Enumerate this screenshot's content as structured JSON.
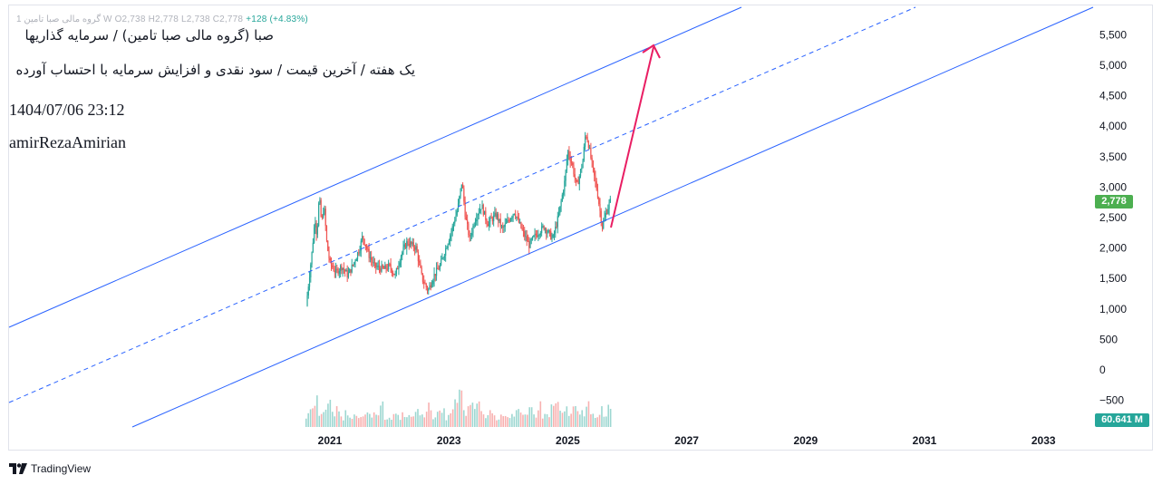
{
  "header": {
    "ohlc_prefix": "1  گروه مالی صبا تامین W  O2,738  H2,778  L2,738  C2,778",
    "change": "+128 (+4.83%)"
  },
  "notes": {
    "title": "صبا (گروه مالی صبا تامین) / سرمایه گذاریها",
    "subtitle": "یک هفته / آخرین قیمت / سود نقدی و افزایش سرمایه با احتساب آورده",
    "datetime": "1404/07/06 23:12",
    "author": "amirRezaAmirian"
  },
  "badges": {
    "last_price": "2,778",
    "volume": "60.641 M"
  },
  "brand": {
    "name": "TradingView"
  },
  "colors": {
    "up": "#26a69a",
    "down": "#ef5350",
    "channel": "#2962ff",
    "arrow": "#e91e63",
    "price_badge": "#4caf50",
    "volume_badge": "#26a69a"
  },
  "chart_data": {
    "type": "candlestick",
    "interval": "weekly",
    "y_tick_labels": [
      "5,500",
      "5,000",
      "4,500",
      "4,000",
      "3,500",
      "3,000",
      "2,500",
      "2,000",
      "1,500",
      "1,000",
      "500",
      "0",
      "−500"
    ],
    "y_ticks": [
      5500,
      5000,
      4500,
      4000,
      3500,
      3000,
      2500,
      2000,
      1500,
      1000,
      500,
      0,
      -500
    ],
    "x_tick_labels": [
      "2021",
      "2023",
      "2025",
      "2027",
      "2029",
      "2031",
      "2033"
    ],
    "x_ticks": [
      2021,
      2023,
      2025,
      2027,
      2029,
      2031,
      2033
    ],
    "last_bar": {
      "open": 2738,
      "high": 2778,
      "low": 2738,
      "close": 2778,
      "change": 128,
      "change_pct": 4.83
    },
    "price_path": [
      [
        2020.6,
        1050
      ],
      [
        2020.65,
        1500
      ],
      [
        2020.7,
        1950
      ],
      [
        2020.75,
        2500
      ],
      [
        2020.78,
        2200
      ],
      [
        2020.82,
        2850
      ],
      [
        2020.86,
        2400
      ],
      [
        2020.9,
        2700
      ],
      [
        2020.95,
        2050
      ],
      [
        2021.0,
        1750
      ],
      [
        2021.1,
        1600
      ],
      [
        2021.2,
        1700
      ],
      [
        2021.3,
        1550
      ],
      [
        2021.4,
        1750
      ],
      [
        2021.5,
        2000
      ],
      [
        2021.55,
        2200
      ],
      [
        2021.65,
        1900
      ],
      [
        2021.75,
        1700
      ],
      [
        2021.9,
        1650
      ],
      [
        2022.0,
        1700
      ],
      [
        2022.1,
        1550
      ],
      [
        2022.2,
        1900
      ],
      [
        2022.3,
        2100
      ],
      [
        2022.45,
        2000
      ],
      [
        2022.55,
        1500
      ],
      [
        2022.65,
        1300
      ],
      [
        2022.75,
        1550
      ],
      [
        2022.85,
        1700
      ],
      [
        2022.95,
        2000
      ],
      [
        2023.05,
        2300
      ],
      [
        2023.15,
        2650
      ],
      [
        2023.22,
        3100
      ],
      [
        2023.28,
        2500
      ],
      [
        2023.35,
        2150
      ],
      [
        2023.45,
        2500
      ],
      [
        2023.55,
        2700
      ],
      [
        2023.65,
        2400
      ],
      [
        2023.8,
        2550
      ],
      [
        2023.9,
        2300
      ],
      [
        2024.0,
        2450
      ],
      [
        2024.1,
        2600
      ],
      [
        2024.25,
        2250
      ],
      [
        2024.35,
        2050
      ],
      [
        2024.45,
        2200
      ],
      [
        2024.6,
        2350
      ],
      [
        2024.75,
        2150
      ],
      [
        2024.85,
        2550
      ],
      [
        2024.95,
        3100
      ],
      [
        2025.0,
        3600
      ],
      [
        2025.08,
        3350
      ],
      [
        2025.15,
        3000
      ],
      [
        2025.25,
        3400
      ],
      [
        2025.3,
        3900
      ],
      [
        2025.35,
        3700
      ],
      [
        2025.42,
        3300
      ],
      [
        2025.5,
        2900
      ],
      [
        2025.58,
        2350
      ],
      [
        2025.65,
        2600
      ],
      [
        2025.72,
        2778
      ]
    ],
    "volume_profile": [
      0.35,
      0.6,
      0.8,
      0.45,
      0.55,
      0.7,
      0.4,
      0.5,
      0.3,
      0.45,
      0.35,
      0.5,
      0.25,
      0.3,
      0.4,
      0.35,
      0.3,
      0.95,
      0.3,
      0.25,
      0.35,
      0.3,
      0.4,
      0.3,
      0.35,
      0.45,
      0.5,
      0.4,
      0.6,
      0.35,
      0.4,
      0.45,
      0.3,
      0.55,
      0.7,
      1.0,
      0.45,
      0.55,
      0.6,
      0.8,
      0.4,
      0.35,
      0.5,
      0.3,
      0.3,
      0.45,
      0.35,
      0.4,
      0.5,
      0.35,
      0.3,
      0.55,
      0.4,
      0.65,
      0.35,
      0.4,
      0.6,
      0.75,
      0.45,
      0.5,
      0.35,
      0.55,
      0.4,
      0.45,
      0.7,
      0.35,
      0.4,
      0.5,
      0.3,
      0.55
    ]
  }
}
